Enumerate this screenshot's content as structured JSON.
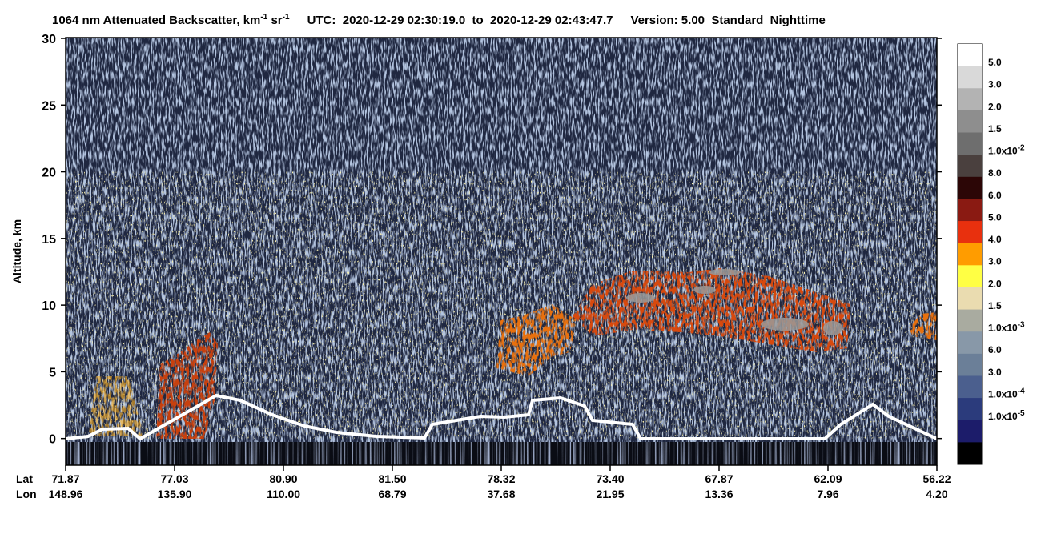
{
  "chart_data": {
    "type": "curtain",
    "title": {
      "text": "1064 nm Attenuated Backscatter, km",
      "exp1": "-1",
      "text2": " sr",
      "exp2": "-1"
    },
    "time_range": "UTC:  2020-12-29 02:30:19.0  to  2020-12-29 02:43:47.7",
    "version": "Version: 5.00  Standard  Nighttime",
    "y_label": "Altitude, km",
    "ylim": [
      -2,
      30
    ],
    "yticks": [
      0,
      5,
      10,
      15,
      20,
      25,
      30
    ],
    "x_rows": [
      {
        "name": "Lat",
        "values": [
          "71.87",
          "77.03",
          "80.90",
          "81.50",
          "78.32",
          "73.40",
          "67.87",
          "62.09",
          "56.22"
        ]
      },
      {
        "name": "Lon",
        "values": [
          "148.96",
          "135.90",
          "110.00",
          "68.79",
          "37.68",
          "21.95",
          "13.36",
          "7.96",
          "4.20"
        ]
      }
    ],
    "colorbar": {
      "colors": [
        "#ffffff",
        "#d9d9d9",
        "#b3b3b3",
        "#8e8e8e",
        "#6e6e6e",
        "#4a403e",
        "#2c0606",
        "#8a1a12",
        "#e8300e",
        "#ff9c00",
        "#ffff44",
        "#eadcb0",
        "#a9aba0",
        "#8898a8",
        "#6b7f98",
        "#4b5f8e",
        "#2b3b7c",
        "#1c1c6a",
        "#000000"
      ],
      "labels": [
        "5.0",
        "3.0",
        "2.0",
        "1.5",
        {
          "text": "1.0x10",
          "exp": "-2"
        },
        "8.0",
        "6.0",
        "5.0",
        "4.0",
        "3.0",
        "2.0",
        "1.5",
        {
          "text": "1.0x10",
          "exp": "-3"
        },
        "6.0",
        "3.0",
        {
          "text": "1.0x10",
          "exp": "-4"
        },
        {
          "text": "1.0x10",
          "exp": "-5"
        }
      ]
    }
  }
}
